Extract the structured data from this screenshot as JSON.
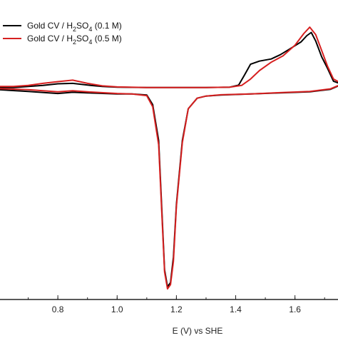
{
  "chart_data": {
    "type": "line",
    "title": "",
    "xlabel": "E (V) vs SHE",
    "ylabel": "",
    "xlim": [
      0.6,
      1.75
    ],
    "ylim": [
      -1.0,
      0.42
    ],
    "x_ticks": [
      0.8,
      1.0,
      1.2,
      1.4,
      1.6
    ],
    "x_tick_labels": [
      "0.8",
      "1.0",
      "1.2",
      "1.4",
      "1.6"
    ],
    "grid": false,
    "legend_position": "top-left",
    "legend": [
      {
        "label": "Gold CV / H",
        "sub": "2",
        "mid": "SO",
        "sub2": "4",
        "tail": " (0.1 M)",
        "color": "#000000"
      },
      {
        "label": "Gold CV / H",
        "sub": "2",
        "mid": "SO",
        "sub2": "4",
        "tail": " (0.5 M)",
        "color": "#d62020"
      }
    ],
    "series": [
      {
        "name": "Gold CV / H2SO4 (0.1 M)",
        "color": "#000000",
        "anodic": [
          [
            0.6,
            0.0
          ],
          [
            0.65,
            0.0
          ],
          [
            0.7,
            0.005
          ],
          [
            0.75,
            0.01
          ],
          [
            0.8,
            0.018
          ],
          [
            0.85,
            0.02
          ],
          [
            0.9,
            0.012
          ],
          [
            0.95,
            0.005
          ],
          [
            1.0,
            0.002
          ],
          [
            1.1,
            0.0
          ],
          [
            1.2,
            0.0
          ],
          [
            1.3,
            0.0
          ],
          [
            1.38,
            0.002
          ],
          [
            1.41,
            0.012
          ],
          [
            1.43,
            0.06
          ],
          [
            1.45,
            0.11
          ],
          [
            1.48,
            0.125
          ],
          [
            1.52,
            0.135
          ],
          [
            1.55,
            0.155
          ],
          [
            1.58,
            0.18
          ],
          [
            1.62,
            0.215
          ],
          [
            1.64,
            0.245
          ],
          [
            1.655,
            0.26
          ],
          [
            1.67,
            0.22
          ],
          [
            1.69,
            0.145
          ],
          [
            1.71,
            0.09
          ],
          [
            1.73,
            0.03
          ],
          [
            1.75,
            0.02
          ]
        ],
        "cathodic": [
          [
            1.75,
            0.01
          ],
          [
            1.72,
            -0.008
          ],
          [
            1.65,
            -0.02
          ],
          [
            1.55,
            -0.025
          ],
          [
            1.45,
            -0.03
          ],
          [
            1.35,
            -0.035
          ],
          [
            1.3,
            -0.04
          ],
          [
            1.27,
            -0.05
          ],
          [
            1.24,
            -0.1
          ],
          [
            1.22,
            -0.25
          ],
          [
            1.2,
            -0.55
          ],
          [
            1.19,
            -0.8
          ],
          [
            1.18,
            -0.92
          ],
          [
            1.17,
            -0.94
          ],
          [
            1.16,
            -0.86
          ],
          [
            1.15,
            -0.55
          ],
          [
            1.14,
            -0.25
          ],
          [
            1.12,
            -0.08
          ],
          [
            1.1,
            -0.035
          ],
          [
            1.05,
            -0.03
          ],
          [
            1.0,
            -0.03
          ],
          [
            0.9,
            -0.025
          ],
          [
            0.85,
            -0.022
          ],
          [
            0.8,
            -0.028
          ],
          [
            0.7,
            -0.018
          ],
          [
            0.6,
            -0.01
          ]
        ]
      },
      {
        "name": "Gold CV / H2SO4 (0.5 M)",
        "color": "#d62020",
        "anodic": [
          [
            0.6,
            0.005
          ],
          [
            0.65,
            0.005
          ],
          [
            0.7,
            0.01
          ],
          [
            0.75,
            0.02
          ],
          [
            0.8,
            0.028
          ],
          [
            0.85,
            0.035
          ],
          [
            0.9,
            0.02
          ],
          [
            0.95,
            0.008
          ],
          [
            1.0,
            0.003
          ],
          [
            1.1,
            0.0
          ],
          [
            1.2,
            0.0
          ],
          [
            1.3,
            0.0
          ],
          [
            1.38,
            0.002
          ],
          [
            1.42,
            0.01
          ],
          [
            1.45,
            0.04
          ],
          [
            1.48,
            0.08
          ],
          [
            1.52,
            0.12
          ],
          [
            1.56,
            0.15
          ],
          [
            1.6,
            0.2
          ],
          [
            1.63,
            0.255
          ],
          [
            1.65,
            0.285
          ],
          [
            1.67,
            0.25
          ],
          [
            1.69,
            0.175
          ],
          [
            1.71,
            0.1
          ],
          [
            1.73,
            0.04
          ],
          [
            1.75,
            0.025
          ]
        ],
        "cathodic": [
          [
            1.75,
            0.012
          ],
          [
            1.72,
            -0.006
          ],
          [
            1.65,
            -0.018
          ],
          [
            1.55,
            -0.024
          ],
          [
            1.45,
            -0.03
          ],
          [
            1.35,
            -0.034
          ],
          [
            1.3,
            -0.04
          ],
          [
            1.27,
            -0.05
          ],
          [
            1.24,
            -0.1
          ],
          [
            1.22,
            -0.26
          ],
          [
            1.2,
            -0.56
          ],
          [
            1.19,
            -0.82
          ],
          [
            1.18,
            -0.93
          ],
          [
            1.17,
            -0.95
          ],
          [
            1.16,
            -0.87
          ],
          [
            1.15,
            -0.57
          ],
          [
            1.14,
            -0.27
          ],
          [
            1.12,
            -0.09
          ],
          [
            1.1,
            -0.038
          ],
          [
            1.05,
            -0.03
          ],
          [
            1.0,
            -0.028
          ],
          [
            0.9,
            -0.02
          ],
          [
            0.85,
            -0.015
          ],
          [
            0.8,
            -0.02
          ],
          [
            0.7,
            -0.01
          ],
          [
            0.6,
            -0.005
          ]
        ]
      }
    ]
  }
}
